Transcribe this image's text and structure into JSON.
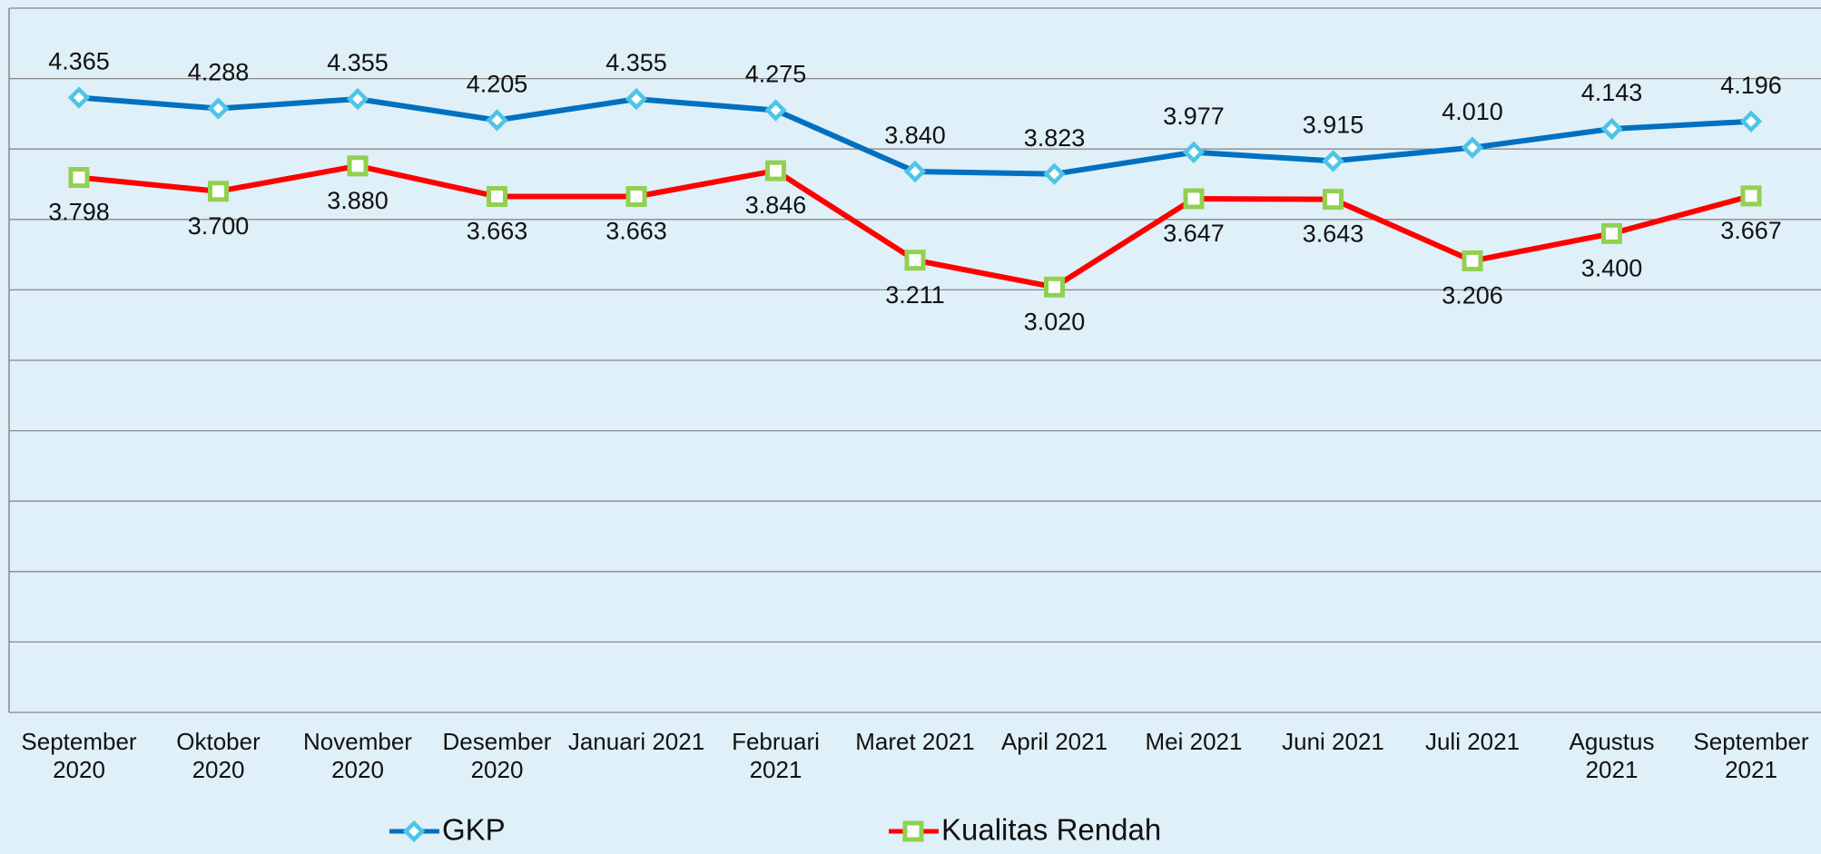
{
  "chart_data": {
    "type": "line",
    "categories": [
      "September 2020",
      "Oktober 2020",
      "November 2020",
      "Desember 2020",
      "Januari 2021",
      "Februari 2021",
      "Maret 2021",
      "April 2021",
      "Mei 2021",
      "Juni 2021",
      "Juli 2021",
      "Agustus 2021",
      "September 2021"
    ],
    "series": [
      {
        "name": "GKP",
        "color": "#0070c0",
        "marker_color": "#4fc3e8",
        "marker": "diamond",
        "values": [
          4365,
          4288,
          4355,
          4205,
          4355,
          4275,
          3840,
          3823,
          3977,
          3915,
          4010,
          4143,
          4196
        ],
        "value_labels": [
          "4.365",
          "4.288",
          "4.355",
          "4.205",
          "4.355",
          "4.275",
          "3.840",
          "3.823",
          "3.977",
          "3.915",
          "4.010",
          "4.143",
          "4.196"
        ]
      },
      {
        "name": "Kualitas Rendah",
        "color": "#ff0000",
        "marker_color": "#92d050",
        "marker": "square",
        "values": [
          3798,
          3700,
          3880,
          3663,
          3663,
          3846,
          3211,
          3020,
          3647,
          3643,
          3206,
          3400,
          3667
        ],
        "value_labels": [
          "3.798",
          "3.700",
          "3.880",
          "3.663",
          "3.663",
          "3.846",
          "3.211",
          "3.020",
          "3.647",
          "3.643",
          "3.206",
          "3.400",
          "3.667"
        ]
      }
    ],
    "ylim": [
      0,
      5000
    ],
    "yticks": [
      0,
      500,
      1000,
      1500,
      2000,
      2500,
      3000,
      3500,
      4000,
      4500,
      5000
    ],
    "grid": true
  }
}
